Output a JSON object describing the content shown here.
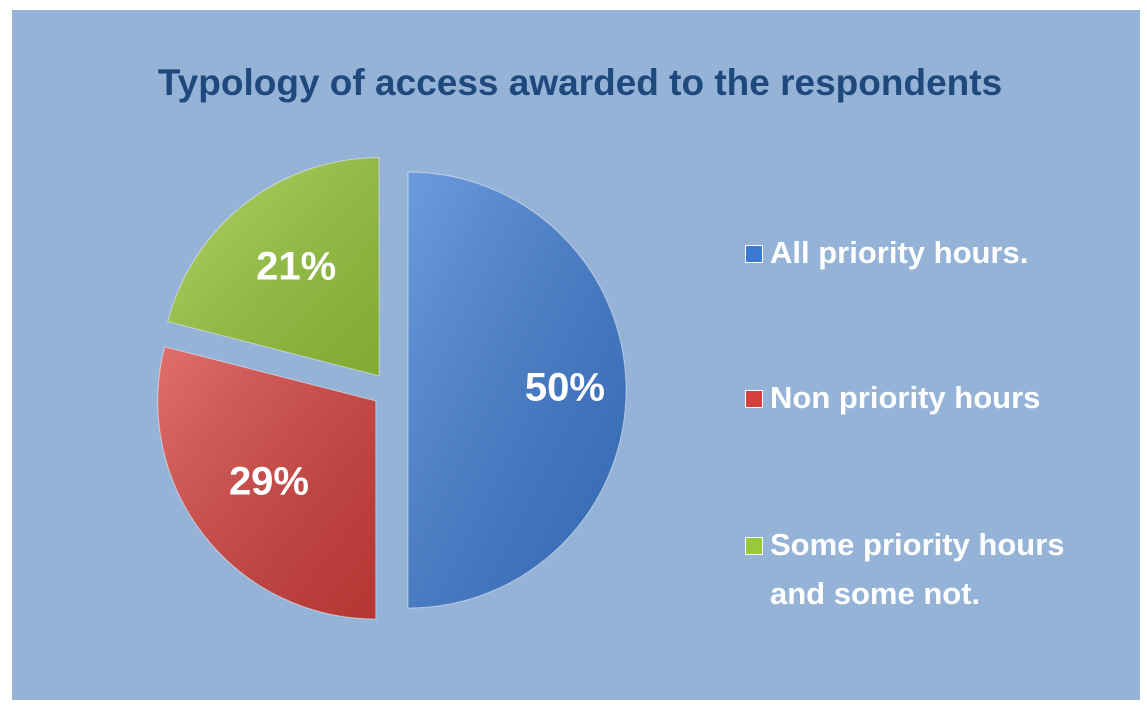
{
  "chart_data": {
    "type": "pie",
    "title": "Typology of access awarded to the respondents",
    "categories": [
      "All priority hours.",
      "Non priority hours",
      "Some priority hours and some not."
    ],
    "values": [
      50,
      29,
      21
    ],
    "value_labels": [
      "50%",
      "29%",
      "21%"
    ],
    "colors": [
      "#3d7bd3",
      "#d5403d",
      "#98c93b"
    ],
    "legend": "right"
  }
}
